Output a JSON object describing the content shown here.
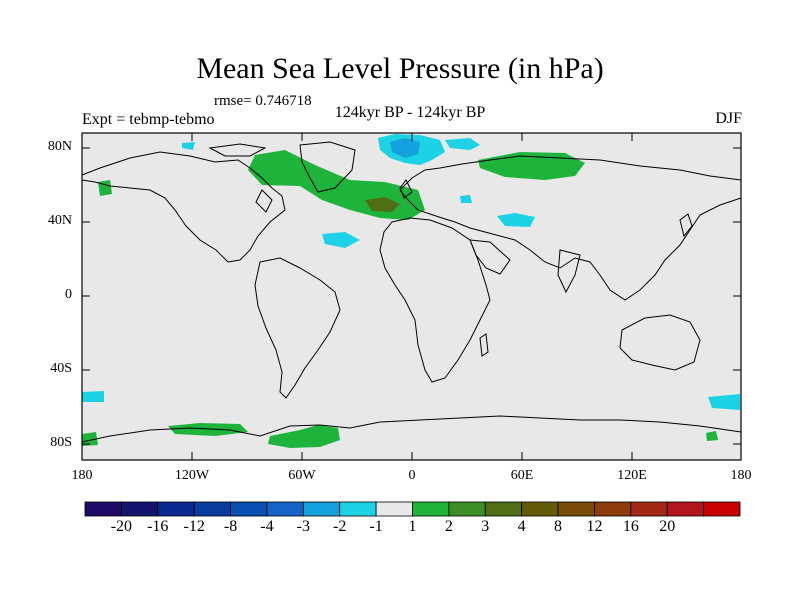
{
  "title": "Mean Sea Level Pressure (in hPa)",
  "rmse": "rmse= 0.746718",
  "expt": "Expt = tebmp-tebmo",
  "period": "124kyr BP - 124kyr BP",
  "season": "DJF",
  "lat_labels": [
    "80N",
    "40N",
    "0",
    "40S",
    "80S"
  ],
  "lon_labels": [
    "180",
    "120W",
    "60W",
    "0",
    "60E",
    "120E",
    "180"
  ],
  "colorbar": {
    "colors": [
      "#1e0a64",
      "#14146e",
      "#0a2890",
      "#0a3ca0",
      "#0a50b4",
      "#1464c8",
      "#14a0dc",
      "#1ed2e6",
      "#e8e8e8",
      "#1eb43c",
      "#3c8c28",
      "#506e14",
      "#645a0a",
      "#7a4a0a",
      "#8c3c0a",
      "#a02814",
      "#b4141e",
      "#c80000"
    ],
    "labels": [
      "-20",
      "-16",
      "-12",
      "-8",
      "-4",
      "-3",
      "-2",
      "-1",
      "1",
      "2",
      "3",
      "4",
      "8",
      "12",
      "16",
      "20"
    ]
  },
  "icons": {
    "map": "world-map"
  }
}
